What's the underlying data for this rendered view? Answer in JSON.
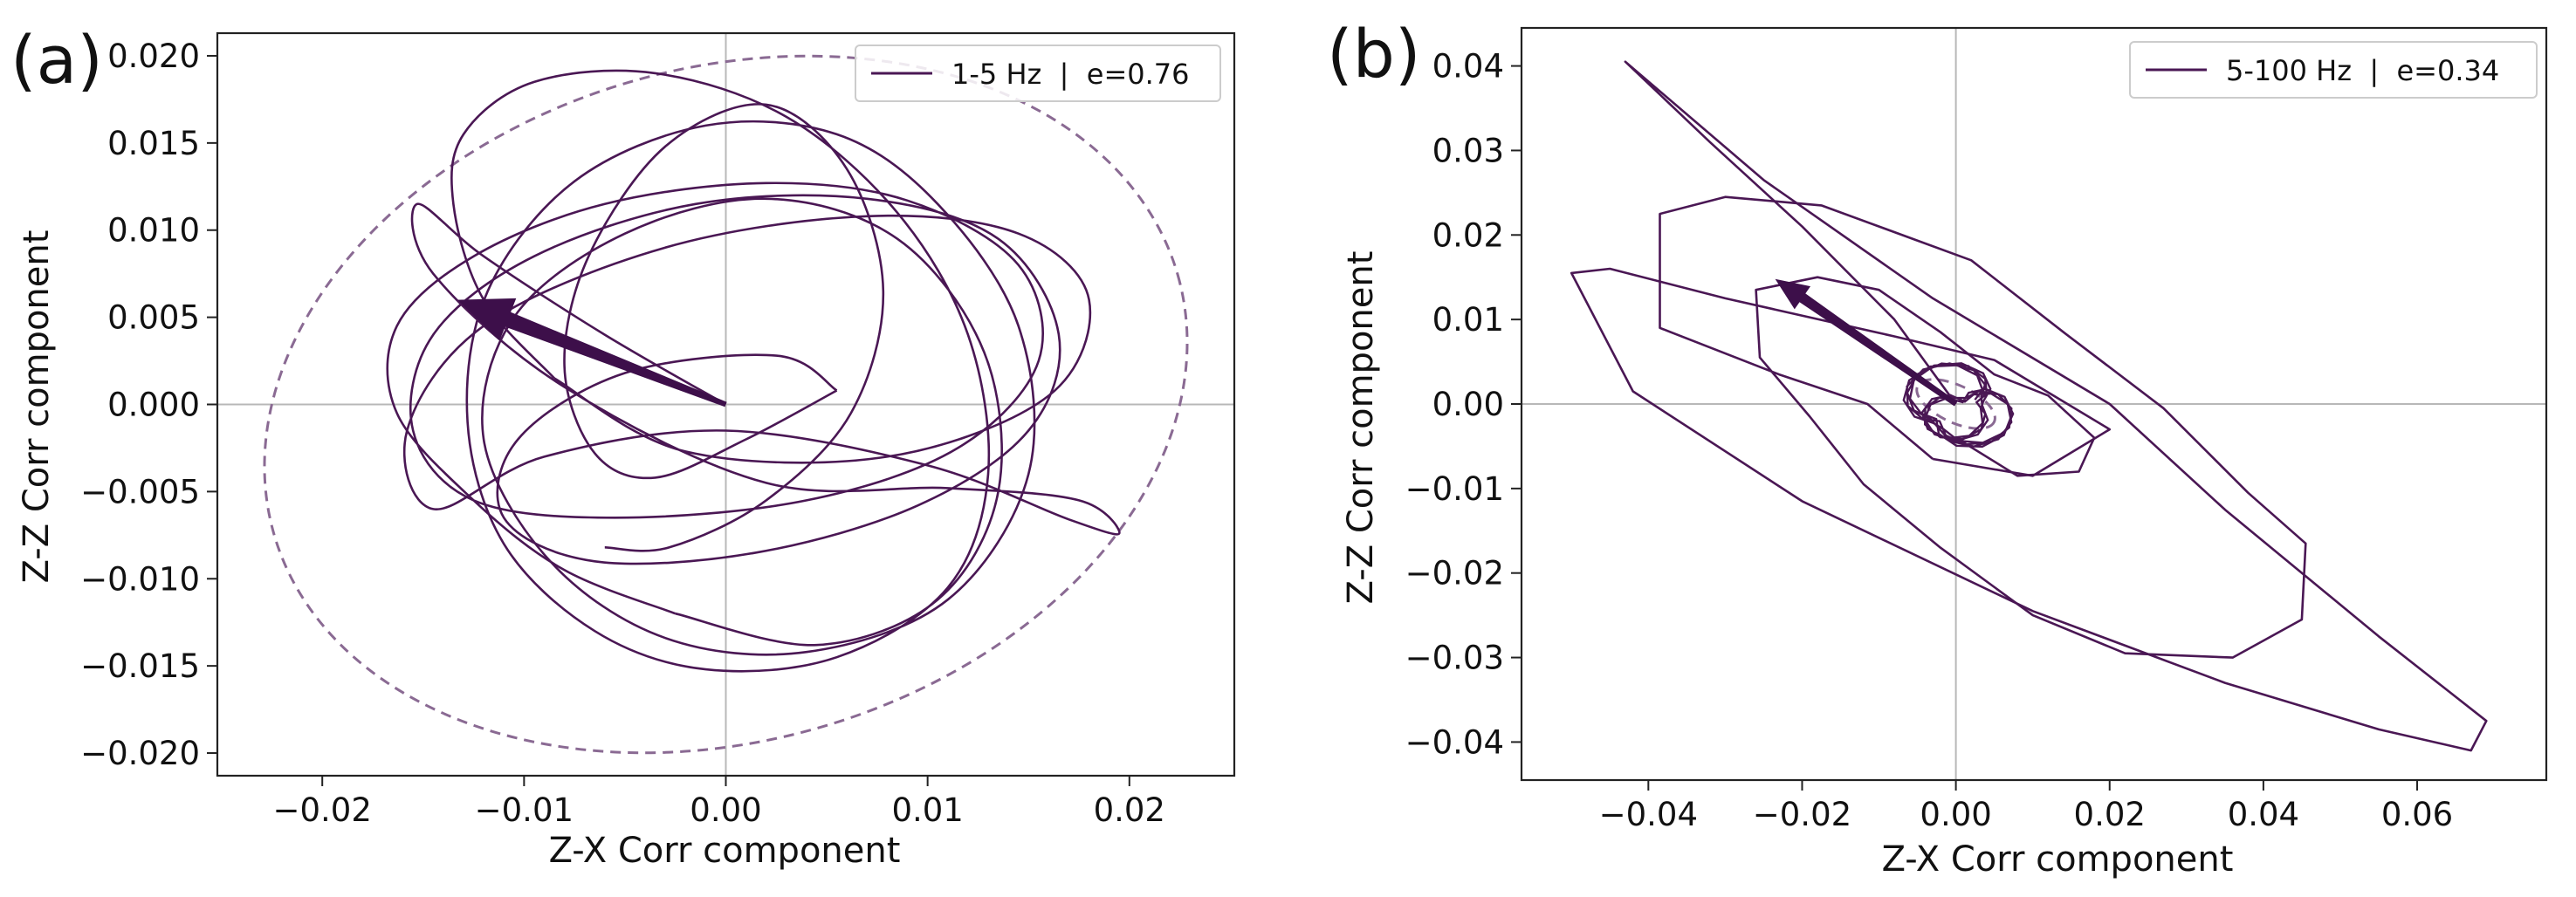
{
  "figure": {
    "panel_a_label": "(a)",
    "panel_b_label": "(b)"
  },
  "chart_data": [
    {
      "type": "line",
      "panel": "(a)",
      "xlabel": "Z-X Corr component",
      "ylabel": "Z-Z Corr component",
      "xlim": [
        -0.0252,
        0.0252
      ],
      "ylim": [
        -0.0213,
        0.0213
      ],
      "xticks": [
        -0.02,
        -0.01,
        0.0,
        0.01,
        0.02
      ],
      "xtick_labels": [
        "−0.02",
        "−0.01",
        "0.00",
        "0.01",
        "0.02"
      ],
      "yticks": [
        0.02,
        0.015,
        0.01,
        0.005,
        0.0,
        -0.005,
        -0.01,
        -0.015,
        -0.02
      ],
      "ytick_labels": [
        "0.020",
        "0.015",
        "0.010",
        "0.005",
        "0.000",
        "−0.005",
        "−0.010",
        "−0.015",
        "−0.020"
      ],
      "grid": false,
      "crosshair": true,
      "legend": {
        "label": "1-5 Hz  |  e=0.76",
        "placement": "top-right"
      },
      "color": "#4a1754",
      "ellipse": {
        "cx": 0.0,
        "cy": 0.0,
        "rx": 0.0233,
        "ry": 0.0193,
        "angle_deg": 16,
        "style": "dashed",
        "color": "#8a6a93"
      },
      "arrow": {
        "from": [
          0.0,
          0.0
        ],
        "to": [
          -0.0133,
          0.006
        ]
      },
      "series": [
        {
          "name": "loop1",
          "x": [
            0.0,
            -0.006,
            -0.012,
            -0.0153,
            -0.0145,
            -0.008,
            0.002,
            0.011,
            0.0175,
            0.0195,
            0.017,
            0.01,
            0.0,
            -0.009,
            -0.0145,
            -0.0158,
            -0.012,
            -0.003,
            0.007,
            0.0145,
            0.018,
            0.016,
            0.008,
            -0.002,
            -0.0085
          ],
          "y": [
            0.0,
            0.004,
            0.0085,
            0.0115,
            0.0075,
            0.001,
            -0.0045,
            -0.0048,
            -0.0055,
            -0.0074,
            -0.0066,
            -0.0035,
            -0.0015,
            -0.003,
            -0.006,
            -0.0015,
            0.0045,
            0.009,
            0.0108,
            0.0098,
            0.006,
            0.0005,
            -0.003,
            -0.0027,
            0.0015
          ]
        },
        {
          "name": "loop2",
          "x": [
            -0.0085,
            -0.012,
            -0.0135,
            -0.013,
            -0.0095,
            -0.0035,
            0.003,
            0.0085,
            0.012,
            0.013,
            0.011,
            0.0055,
            -0.001,
            -0.0065,
            -0.011,
            -0.0128,
            -0.0118,
            -0.0075,
            -0.001,
            0.0055,
            0.0105,
            0.0145,
            0.015,
            0.011,
            0.004,
            -0.003,
            -0.0087,
            -0.012,
            -0.0105,
            -0.005,
            0.002,
            0.0085,
            0.0128,
            0.0135,
            0.0105,
            0.0045,
            -0.0025
          ],
          "y": [
            0.0015,
            0.006,
            0.0115,
            0.0155,
            0.0185,
            0.019,
            0.0165,
            0.011,
            0.004,
            -0.004,
            -0.0105,
            -0.0145,
            -0.0152,
            -0.013,
            -0.008,
            -0.001,
            0.0065,
            0.0128,
            0.016,
            0.0155,
            0.0115,
            0.0045,
            -0.004,
            -0.0112,
            -0.0142,
            -0.0134,
            -0.009,
            -0.002,
            0.005,
            0.0098,
            0.0118,
            0.0095,
            0.003,
            -0.005,
            -0.0112,
            -0.0138,
            -0.012
          ]
        },
        {
          "name": "loop3",
          "x": [
            -0.0025,
            -0.008,
            -0.0125,
            -0.0163,
            -0.0163,
            -0.0125,
            -0.006,
            0.002,
            0.009,
            0.0145,
            0.0155,
            0.0115,
            0.004,
            -0.0055,
            -0.0125,
            -0.0155,
            -0.0145,
            -0.0095,
            -0.0015,
            0.007,
            0.0135,
            0.0165,
            0.015,
            0.0095,
            0.0015,
            -0.0065,
            -0.011,
            -0.0103,
            -0.005,
            0.0025,
            0.0055
          ],
          "y": [
            -0.012,
            -0.0095,
            -0.0055,
            -0.0005,
            0.0045,
            0.0085,
            0.0115,
            0.0127,
            0.0117,
            0.008,
            0.0025,
            -0.0025,
            -0.0055,
            -0.0065,
            -0.0055,
            -0.0015,
            0.004,
            0.0085,
            0.0115,
            0.0118,
            0.0095,
            0.004,
            -0.0015,
            -0.0058,
            -0.0085,
            -0.009,
            -0.0065,
            -0.002,
            0.0018,
            0.0028,
            0.0008
          ]
        },
        {
          "name": "loop4",
          "x": [
            0.0055,
            0.001,
            -0.0035,
            -0.0065,
            -0.008,
            -0.0068,
            -0.003,
            0.002,
            0.006,
            0.0078,
            0.0062,
            0.002,
            -0.0028,
            -0.006
          ],
          "y": [
            0.0008,
            -0.002,
            -0.0042,
            -0.0028,
            0.0022,
            0.0085,
            0.0148,
            0.0172,
            0.0135,
            0.0065,
            -0.0005,
            -0.0055,
            -0.0082,
            -0.0082
          ]
        }
      ]
    },
    {
      "type": "line",
      "panel": "(b)",
      "xlabel": "Z-X Corr component",
      "ylabel": "Z-Z Corr component",
      "xlim": [
        -0.0565,
        0.0768
      ],
      "ylim": [
        -0.0445,
        0.0445
      ],
      "xticks": [
        -0.04,
        -0.02,
        0.0,
        0.02,
        0.04,
        0.06
      ],
      "xtick_labels": [
        "−0.04",
        "−0.02",
        "0.00",
        "0.02",
        "0.04",
        "0.06"
      ],
      "yticks": [
        0.04,
        0.03,
        0.02,
        0.01,
        0.0,
        -0.01,
        -0.02,
        -0.03,
        -0.04
      ],
      "ytick_labels": [
        "0.04",
        "0.03",
        "0.02",
        "0.01",
        "0.00",
        "−0.01",
        "−0.02",
        "−0.03",
        "−0.04"
      ],
      "grid": false,
      "crosshair": true,
      "legend": {
        "label": "5-100 Hz  |  e=0.34",
        "placement": "top-right"
      },
      "color": "#4a1754",
      "ellipse": {
        "cx": 0.0,
        "cy": 0.0,
        "rx": 0.0055,
        "ry": 0.0022,
        "angle_deg": -25,
        "style": "dashed",
        "color": "#8a6a93"
      },
      "arrow": {
        "from": [
          0.0,
          0.0
        ],
        "to": [
          -0.0235,
          0.0148
        ]
      },
      "series": [
        {
          "name": "outer-path",
          "x": [
            0.0,
            -0.008,
            -0.02,
            -0.032,
            -0.043,
            -0.025,
            -0.003,
            0.02,
            0.035,
            0.055,
            0.069,
            0.067,
            0.055,
            0.035,
            0.01,
            -0.02,
            -0.042,
            -0.05,
            -0.045,
            -0.03,
            -0.008,
            0.005,
            0.02,
            0.01,
            -0.003
          ],
          "y": [
            0.0,
            0.01,
            0.021,
            0.031,
            0.0405,
            0.0265,
            0.0125,
            0.0,
            -0.0125,
            -0.0275,
            -0.0375,
            -0.041,
            -0.0385,
            -0.033,
            -0.0245,
            -0.0115,
            0.0015,
            0.0155,
            0.016,
            0.0125,
            0.008,
            0.0052,
            -0.003,
            -0.0085,
            -0.0065
          ]
        },
        {
          "name": "loop-mid",
          "x": [
            -0.003,
            -0.0115,
            -0.023,
            -0.0385,
            -0.0385,
            -0.03,
            -0.0175,
            -0.0055,
            0.002,
            0.014,
            0.027,
            0.038,
            0.0455,
            0.045,
            0.036,
            0.022,
            0.01,
            -0.002,
            -0.012,
            -0.019,
            -0.0255,
            -0.026,
            -0.018,
            -0.01,
            -0.002,
            0.005,
            0.012,
            0.018,
            0.016,
            0.008,
            0.0
          ],
          "y": [
            -0.0065,
            0.0,
            0.0035,
            0.009,
            0.0225,
            0.0245,
            0.0235,
            0.0195,
            0.017,
            0.0085,
            -0.0005,
            -0.0105,
            -0.0165,
            -0.0255,
            -0.03,
            -0.0295,
            -0.025,
            -0.017,
            -0.0095,
            -0.0015,
            0.0055,
            0.0135,
            0.015,
            0.0135,
            0.0085,
            0.0035,
            0.001,
            -0.004,
            -0.008,
            -0.0085,
            -0.004
          ]
        }
      ]
    }
  ]
}
